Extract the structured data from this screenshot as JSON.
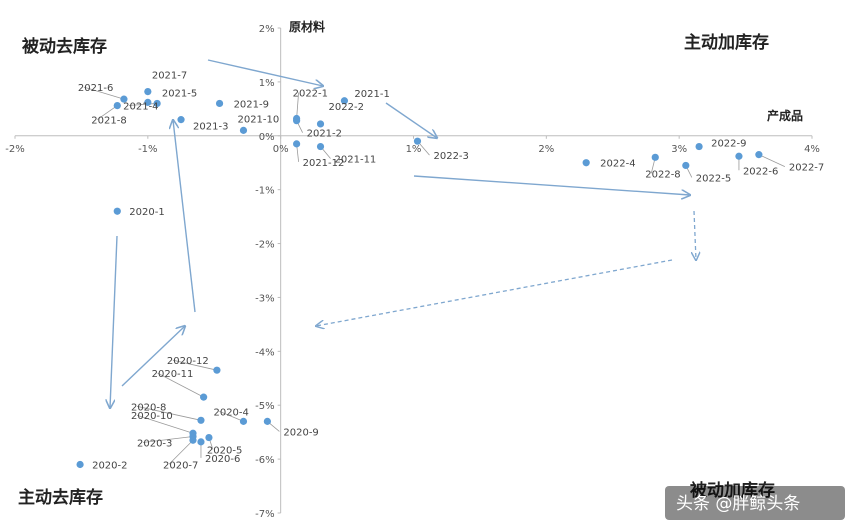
{
  "chart_data": {
    "type": "scatter",
    "xlabel": "产成品",
    "ylabel": "原材料",
    "xlim": [
      -2,
      4
    ],
    "ylim": [
      -7,
      2
    ],
    "x_ticks": [
      "-2%",
      "-1%",
      "0%",
      "1%",
      "2%",
      "3%",
      "4%"
    ],
    "y_ticks": [
      "2%",
      "1%",
      "0%",
      "-1%",
      "-2%",
      "-3%",
      "-4%",
      "-5%",
      "-6%",
      "-7%"
    ],
    "quadrants": {
      "top_left": "被动去库存",
      "top_right": "主动加库存",
      "bottom_left": "主动去库存",
      "bottom_right": "被动加库存"
    },
    "points": [
      {
        "label": "2020-1",
        "x": -1.23,
        "y": -1.4
      },
      {
        "label": "2020-2",
        "x": -1.51,
        "y": -6.1
      },
      {
        "label": "2020-3",
        "x": -0.66,
        "y": -5.58
      },
      {
        "label": "2020-4",
        "x": -0.28,
        "y": -5.3
      },
      {
        "label": "2020-5",
        "x": -0.54,
        "y": -5.6
      },
      {
        "label": "2020-6",
        "x": -0.6,
        "y": -5.68
      },
      {
        "label": "2020-7",
        "x": -0.66,
        "y": -5.65
      },
      {
        "label": "2020-8",
        "x": -0.6,
        "y": -5.28
      },
      {
        "label": "2020-9",
        "x": -0.1,
        "y": -5.3
      },
      {
        "label": "2020-10",
        "x": -0.66,
        "y": -5.52
      },
      {
        "label": "2020-11",
        "x": -0.58,
        "y": -4.85
      },
      {
        "label": "2020-12",
        "x": -0.48,
        "y": -4.35
      },
      {
        "label": "2021-1",
        "x": 0.48,
        "y": 0.65
      },
      {
        "label": "2021-2",
        "x": 0.12,
        "y": 0.28
      },
      {
        "label": "2021-3",
        "x": -0.75,
        "y": 0.3
      },
      {
        "label": "2021-4",
        "x": -0.93,
        "y": 0.6
      },
      {
        "label": "2021-5",
        "x": -1.0,
        "y": 0.62
      },
      {
        "label": "2021-6",
        "x": -1.18,
        "y": 0.68
      },
      {
        "label": "2021-7",
        "x": -1.0,
        "y": 0.82
      },
      {
        "label": "2021-8",
        "x": -1.23,
        "y": 0.56
      },
      {
        "label": "2021-9",
        "x": -0.46,
        "y": 0.6
      },
      {
        "label": "2021-10",
        "x": -0.28,
        "y": 0.1
      },
      {
        "label": "2021-11",
        "x": 0.3,
        "y": -0.2
      },
      {
        "label": "2021-12",
        "x": 0.12,
        "y": -0.15
      },
      {
        "label": "2022-1",
        "x": 0.12,
        "y": 0.32
      },
      {
        "label": "2022-2",
        "x": 0.3,
        "y": 0.22
      },
      {
        "label": "2022-3",
        "x": 1.03,
        "y": -0.1
      },
      {
        "label": "2022-4",
        "x": 2.3,
        "y": -0.5
      },
      {
        "label": "2022-5",
        "x": 3.05,
        "y": -0.55
      },
      {
        "label": "2022-6",
        "x": 3.45,
        "y": -0.38
      },
      {
        "label": "2022-7",
        "x": 3.6,
        "y": -0.35
      },
      {
        "label": "2022-8",
        "x": 2.82,
        "y": -0.4
      },
      {
        "label": "2022-9",
        "x": 3.15,
        "y": -0.2
      }
    ]
  },
  "watermark": {
    "text": "头条 @胖鲸头条"
  }
}
